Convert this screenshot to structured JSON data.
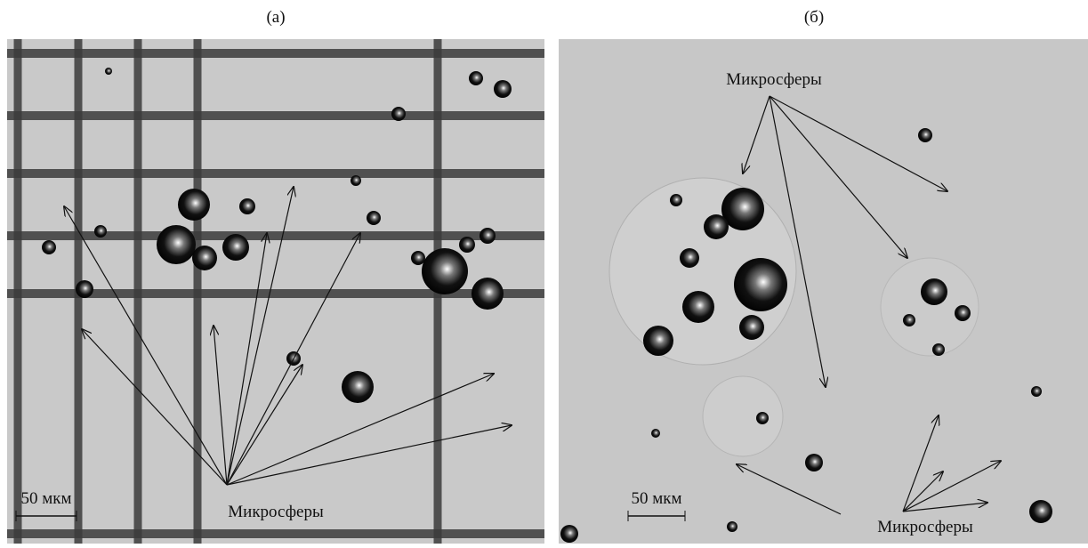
{
  "panels": [
    {
      "label": "(а)",
      "annotation": "Микросферы",
      "scale_bar": "50 мкм"
    },
    {
      "label": "(б)",
      "annotations": [
        "Микросферы",
        "Микросферы"
      ],
      "scale_bar": "50 мкм"
    }
  ]
}
